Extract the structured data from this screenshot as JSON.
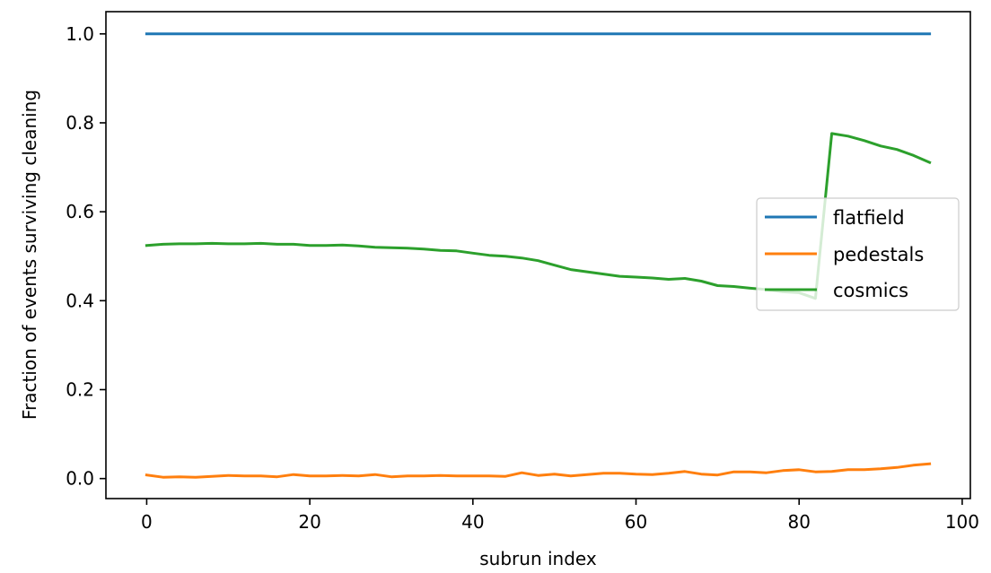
{
  "chart_data": {
    "type": "line",
    "xlabel": "subrun index",
    "ylabel": "Fraction of events surviving cleaning",
    "xlim": [
      -5,
      101
    ],
    "ylim": [
      -0.045,
      1.05
    ],
    "xticks": [
      0,
      20,
      40,
      60,
      80,
      100
    ],
    "xtick_labels": [
      "0",
      "20",
      "40",
      "60",
      "80",
      "100"
    ],
    "yticks": [
      0.0,
      0.2,
      0.4,
      0.6,
      0.8,
      1.0
    ],
    "ytick_labels": [
      "0.0",
      "0.2",
      "0.4",
      "0.6",
      "0.8",
      "1.0"
    ],
    "grid": false,
    "legend_position": "center-right",
    "series": [
      {
        "name": "flatfield",
        "color": "#1f77b4",
        "x": [
          0,
          96
        ],
        "y": [
          1.0,
          1.0
        ]
      },
      {
        "name": "pedestals",
        "color": "#ff7f0e",
        "x": [
          0,
          2,
          4,
          6,
          8,
          10,
          12,
          14,
          16,
          18,
          20,
          22,
          24,
          26,
          28,
          30,
          32,
          34,
          36,
          38,
          40,
          42,
          44,
          46,
          48,
          50,
          52,
          54,
          56,
          58,
          60,
          62,
          64,
          66,
          68,
          70,
          72,
          74,
          76,
          78,
          80,
          82,
          84,
          86,
          88,
          90,
          92,
          94,
          96
        ],
        "y": [
          0.008,
          0.003,
          0.004,
          0.003,
          0.005,
          0.007,
          0.006,
          0.006,
          0.004,
          0.009,
          0.006,
          0.006,
          0.007,
          0.006,
          0.009,
          0.004,
          0.006,
          0.006,
          0.007,
          0.006,
          0.006,
          0.006,
          0.005,
          0.013,
          0.007,
          0.01,
          0.006,
          0.009,
          0.012,
          0.012,
          0.01,
          0.009,
          0.012,
          0.016,
          0.01,
          0.008,
          0.015,
          0.015,
          0.013,
          0.018,
          0.02,
          0.015,
          0.016,
          0.02,
          0.02,
          0.022,
          0.025,
          0.03,
          0.033
        ]
      },
      {
        "name": "cosmics",
        "color": "#2ca02c",
        "x": [
          0,
          2,
          4,
          6,
          8,
          10,
          12,
          14,
          16,
          18,
          20,
          22,
          24,
          26,
          28,
          30,
          32,
          34,
          36,
          38,
          40,
          42,
          44,
          46,
          48,
          50,
          52,
          54,
          56,
          58,
          60,
          62,
          64,
          66,
          68,
          70,
          72,
          74,
          76,
          78,
          80,
          82,
          84,
          86,
          88,
          90,
          92,
          94,
          96
        ],
        "y": [
          0.524,
          0.527,
          0.528,
          0.528,
          0.529,
          0.528,
          0.528,
          0.529,
          0.527,
          0.527,
          0.524,
          0.524,
          0.525,
          0.523,
          0.52,
          0.519,
          0.518,
          0.516,
          0.513,
          0.512,
          0.507,
          0.502,
          0.5,
          0.496,
          0.49,
          0.48,
          0.47,
          0.465,
          0.46,
          0.455,
          0.453,
          0.451,
          0.448,
          0.45,
          0.444,
          0.434,
          0.432,
          0.428,
          0.425,
          0.42,
          0.418,
          0.405,
          0.776,
          0.77,
          0.76,
          0.748,
          0.74,
          0.727,
          0.711
        ]
      }
    ]
  }
}
